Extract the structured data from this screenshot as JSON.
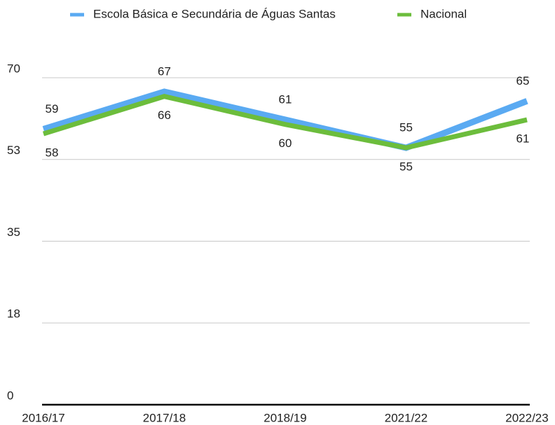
{
  "chart_data": {
    "type": "line",
    "categories": [
      "2016/17",
      "2017/18",
      "2018/19",
      "2021/22",
      "2022/23"
    ],
    "series": [
      {
        "name": "Escola Básica e Secundária de Águas Santas",
        "color": "#5aaaf2",
        "values": [
          59,
          67,
          61,
          55,
          65
        ]
      },
      {
        "name": "Nacional",
        "color": "#6cbd3c",
        "values": [
          58,
          66,
          60,
          55,
          61
        ]
      }
    ],
    "ylim": [
      0,
      70
    ],
    "yticks": [
      0,
      {
        "value": 17.5,
        "label": "18"
      },
      35,
      {
        "value": 52.5,
        "label": "53"
      },
      70
    ],
    "grid": true,
    "legend": "top"
  }
}
